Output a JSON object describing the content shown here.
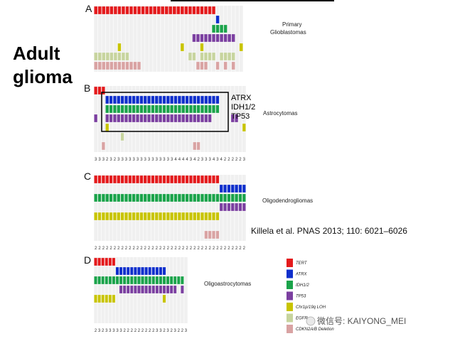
{
  "heading": {
    "line1": "Adult",
    "line2": "glioma"
  },
  "citation": "Killela et al. PNAS 2013; 110: 6021–6026",
  "highlight_genes": [
    "ATRX",
    "IDH1/2",
    "TP53"
  ],
  "watermark": "微信号: KAIYONG_MEI",
  "legend": [
    {
      "label": "TERT",
      "color": "#e41a1c"
    },
    {
      "label": "ATRX",
      "color": "#0f2fcc"
    },
    {
      "label": "IDH1/2",
      "color": "#1aa34a"
    },
    {
      "label": "TP53",
      "color": "#7b3fa0"
    },
    {
      "label": "Chr1p/19q LOH",
      "color": "#c8c400"
    },
    {
      "label": "EGFR",
      "color": "#c7d49e"
    },
    {
      "label": "CDKN2A/B Deletion",
      "color": "#d9a3a3"
    }
  ],
  "chart_data": [
    {
      "type": "heatmap",
      "panel": "A",
      "title": "Primary Glioblastomas",
      "rows": [
        "TERT",
        "ATRX",
        "IDH1/2",
        "TP53",
        "Chr1p/19q LOH",
        "EGFR",
        "CDKN2A/B Deletion"
      ],
      "n_samples": 38,
      "segments": [
        [
          [
            0,
            31
          ]
        ],
        [
          [
            31,
            32
          ]
        ],
        [
          [
            30,
            34
          ]
        ],
        [
          [
            25,
            36
          ]
        ],
        [
          [
            6,
            7
          ],
          [
            22,
            23
          ],
          [
            27,
            28
          ],
          [
            37,
            38
          ]
        ],
        [
          [
            0,
            9
          ],
          [
            24,
            26
          ],
          [
            27,
            31
          ],
          [
            32,
            36
          ]
        ],
        [
          [
            0,
            12
          ],
          [
            26,
            29
          ],
          [
            31,
            32
          ],
          [
            33,
            34
          ],
          [
            35,
            36
          ]
        ]
      ],
      "counts": []
    },
    {
      "type": "heatmap",
      "panel": "B",
      "title": "Astrocytomas",
      "rows": [
        "TERT",
        "ATRX",
        "IDH1/2",
        "TP53",
        "Chr1p/19q LOH",
        "EGFR",
        "CDKN2A/B Deletion"
      ],
      "n_samples": 40,
      "segments": [
        [
          [
            0,
            3
          ]
        ],
        [
          [
            3,
            33
          ]
        ],
        [
          [
            3,
            33
          ]
        ],
        [
          [
            0,
            1
          ],
          [
            3,
            31
          ],
          [
            36,
            38
          ]
        ],
        [
          [
            3,
            4
          ],
          [
            39,
            40
          ]
        ],
        [
          [
            7,
            8
          ]
        ],
        [
          [
            2,
            3
          ],
          [
            26,
            28
          ]
        ]
      ],
      "counts": [
        "3",
        "3",
        "3",
        "2",
        "3",
        "2",
        "3",
        "3",
        "3",
        "3",
        "3",
        "3",
        "3",
        "3",
        "3",
        "3",
        "3",
        "3",
        "3",
        "3",
        "3",
        "4",
        "4",
        "4",
        "4",
        "3",
        "4",
        "2",
        "3",
        "3",
        "3",
        "4",
        "3",
        "4",
        "2",
        "2",
        "2",
        "2",
        "2",
        "3"
      ]
    },
    {
      "type": "heatmap",
      "panel": "C",
      "title": "Oligodendrogliomas",
      "rows": [
        "TERT",
        "ATRX",
        "IDH1/2",
        "TP53",
        "Chr1p/19q LOH",
        "EGFR",
        "CDKN2A/B Deletion"
      ],
      "n_samples": 40,
      "segments": [
        [
          [
            0,
            33
          ]
        ],
        [
          [
            33,
            40
          ]
        ],
        [
          [
            0,
            40
          ]
        ],
        [
          [
            33,
            40
          ]
        ],
        [
          [
            0,
            33
          ]
        ],
        [],
        [
          [
            29,
            33
          ]
        ]
      ],
      "counts": [
        "2",
        "2",
        "2",
        "2",
        "2",
        "2",
        "2",
        "2",
        "2",
        "2",
        "2",
        "2",
        "2",
        "2",
        "2",
        "2",
        "2",
        "2",
        "2",
        "2",
        "2",
        "2",
        "2",
        "2",
        "2",
        "2",
        "2",
        "2",
        "2",
        "2",
        "2",
        "2",
        "2",
        "2",
        "2",
        "2",
        "2",
        "2",
        "2",
        "2"
      ]
    },
    {
      "type": "heatmap",
      "panel": "D",
      "title": "Oligoastrocytomas",
      "rows": [
        "TERT",
        "ATRX",
        "IDH1/2",
        "TP53",
        "Chr1p/19q LOH",
        "EGFR",
        "CDKN2A/B Deletion"
      ],
      "n_samples": 26,
      "segments": [
        [
          [
            0,
            6
          ]
        ],
        [
          [
            6,
            20
          ]
        ],
        [
          [
            0,
            25
          ]
        ],
        [
          [
            7,
            23
          ],
          [
            24,
            25
          ]
        ],
        [
          [
            0,
            6
          ],
          [
            19,
            20
          ]
        ],
        [],
        []
      ],
      "counts": [
        "2",
        "3",
        "2",
        "3",
        "3",
        "3",
        "3",
        "3",
        "2",
        "2",
        "2",
        "2",
        "2",
        "2",
        "2",
        "2",
        "2",
        "3",
        "3",
        "2",
        "3",
        "2",
        "3",
        "2",
        "2",
        "3"
      ]
    }
  ]
}
